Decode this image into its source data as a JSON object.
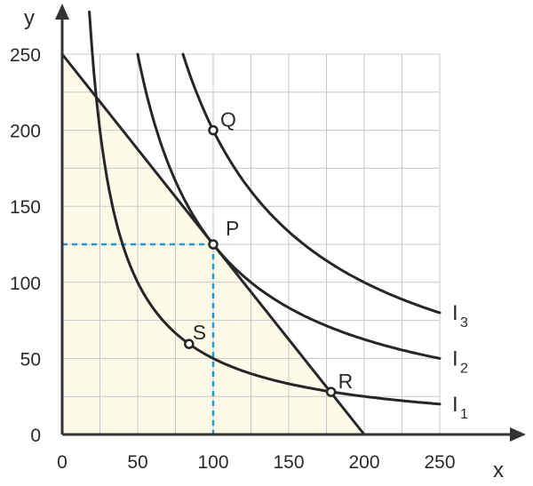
{
  "chart_data": {
    "type": "line",
    "xlabel": "x",
    "ylabel": "y",
    "xlim": [
      0,
      250
    ],
    "ylim": [
      0,
      250
    ],
    "x_ticks": [
      0,
      50,
      100,
      150,
      200,
      250
    ],
    "y_ticks": [
      0,
      50,
      100,
      150,
      200,
      250
    ],
    "grid": true,
    "budget_line": {
      "x_intercept": 200,
      "y_intercept": 250,
      "shaded": true,
      "fill_color": "#fdfbe8"
    },
    "series": [
      {
        "name": "I1",
        "label": "I",
        "sub": "1",
        "k": 5000,
        "x_range": [
          18,
          250
        ]
      },
      {
        "name": "I2",
        "label": "I",
        "sub": "2",
        "k": 12500,
        "x_range": [
          50,
          250
        ]
      },
      {
        "name": "I3",
        "label": "I",
        "sub": "3",
        "k": 20000,
        "x_range": [
          80,
          250
        ]
      }
    ],
    "points": [
      {
        "label": "Q",
        "x": 100,
        "y": 200
      },
      {
        "label": "P",
        "x": 100,
        "y": 125
      },
      {
        "label": "R",
        "x": 178,
        "y": 28
      },
      {
        "label": "S",
        "x": 84,
        "y": 59.5
      }
    ],
    "guides": {
      "x": 100,
      "y": 125,
      "color": "#1e9ad6"
    }
  }
}
